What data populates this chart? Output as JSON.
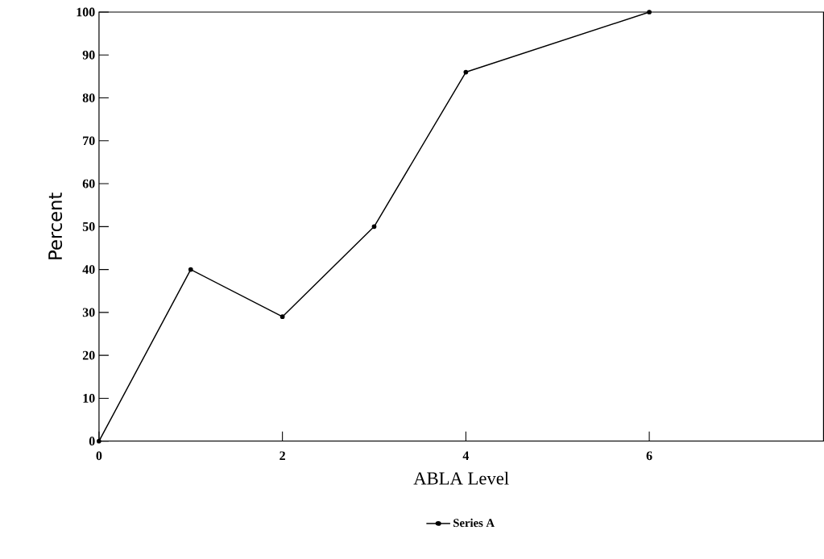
{
  "chart_data": {
    "type": "line",
    "xlabel": "ABLA Level",
    "ylabel": "Percent",
    "series": [
      {
        "name": "Series A",
        "color": "#000000",
        "x": [
          0,
          1,
          2,
          3,
          4,
          6
        ],
        "values": [
          0,
          40,
          29,
          50,
          86,
          100
        ]
      }
    ],
    "xlim": [
      0,
      7.9
    ],
    "ylim": [
      0,
      100
    ],
    "xticks": [
      0,
      2,
      4,
      6
    ],
    "yticks": [
      0,
      10,
      20,
      30,
      40,
      50,
      60,
      70,
      80,
      90,
      100
    ],
    "marker": "circle",
    "line_style": "solid",
    "grid": false,
    "legend": "bottom"
  }
}
